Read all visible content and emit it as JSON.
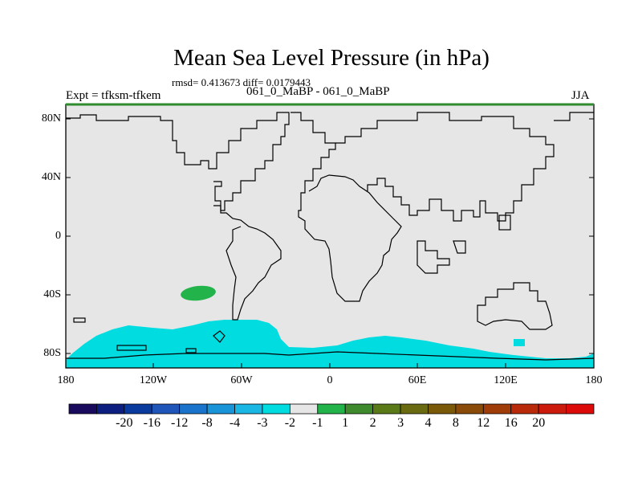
{
  "title": "Mean Sea Level Pressure (in hPa)",
  "stats_text": "rmsd= 0.413673 diff= 0.0179443",
  "experiment_label": "Expt = tfksm-tfkem",
  "cases_label": "061_0_MaBP - 061_0_MaBP",
  "season_label": "JJA",
  "map": {
    "projection": "cylindrical equidistant",
    "lat_range": [
      -90,
      90
    ],
    "lon_range": [
      -180,
      180
    ],
    "lat_ticks": [
      "80N",
      "40N",
      "0",
      "40S",
      "80S"
    ],
    "lon_ticks": [
      "180",
      "120W",
      "60W",
      "0",
      "60E",
      "120E",
      "180"
    ],
    "background_color": "#e6e6e6",
    "frame_top_color": "#2e8b2e"
  },
  "anomaly_regions": [
    {
      "label": "Southern Ocean negative anomaly (-2 to -1)",
      "color": "#00dce0"
    },
    {
      "label": "South Pacific positive anomaly (1 to 2)",
      "color": "#22b34a"
    },
    {
      "label": "Tasman Sea negative anomaly (-2 to -1)",
      "color": "#00dce0"
    }
  ],
  "colorbar": {
    "colors": [
      "#1a0a5e",
      "#0c1f80",
      "#0b3a9e",
      "#1f55b8",
      "#1b74cc",
      "#1a94d8",
      "#1ab6e4",
      "#00dce0",
      "#e6e6e6",
      "#22b34a",
      "#3f8a2c",
      "#5a7a18",
      "#6a6a10",
      "#7a5a08",
      "#8a4a08",
      "#a03c08",
      "#b82a0a",
      "#cc1a0c",
      "#dd0a0a"
    ],
    "labels": [
      "-20",
      "-16",
      "-12",
      "-8",
      "-4",
      "-3",
      "-2",
      "-1",
      "1",
      "2",
      "3",
      "4",
      "8",
      "12",
      "16",
      "20"
    ]
  }
}
